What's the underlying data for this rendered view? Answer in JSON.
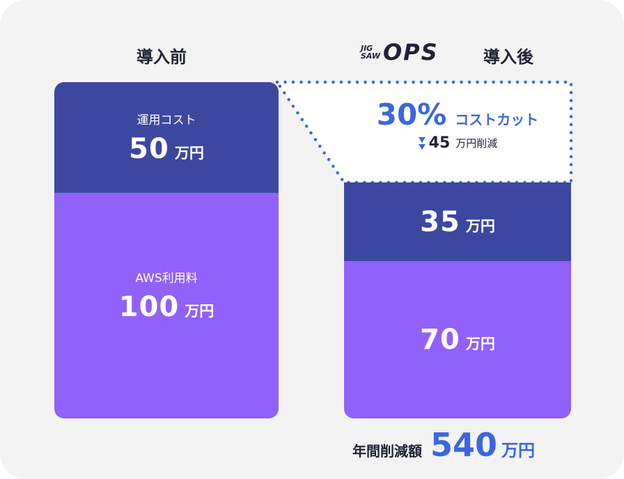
{
  "before": {
    "heading": "導入前",
    "ops_cost": {
      "label": "運用コスト",
      "value": "50",
      "unit": "万円"
    },
    "aws_fee": {
      "label": "AWS利用料",
      "value": "100",
      "unit": "万円"
    }
  },
  "after": {
    "logo": {
      "jig": "JIG",
      "saw": "SAW",
      "ops": "OPS"
    },
    "heading": "導入後",
    "savings_box": {
      "percent": "30%",
      "percent_label": "コストカット",
      "arrow_icon": "double-down-triangle-icon",
      "amount": "45",
      "amount_label": "万円削減"
    },
    "ops_cost": {
      "value": "35",
      "unit": "万円"
    },
    "aws_fee": {
      "value": "70",
      "unit": "万円"
    }
  },
  "annual": {
    "label": "年間削減額",
    "value": "540",
    "unit": "万円"
  },
  "colors": {
    "dark_band": "#3c48a0",
    "purple_band": "#9161fb",
    "accent_blue": "#3b66e0",
    "text": "#1e2233",
    "background": "#f3f3f3"
  }
}
